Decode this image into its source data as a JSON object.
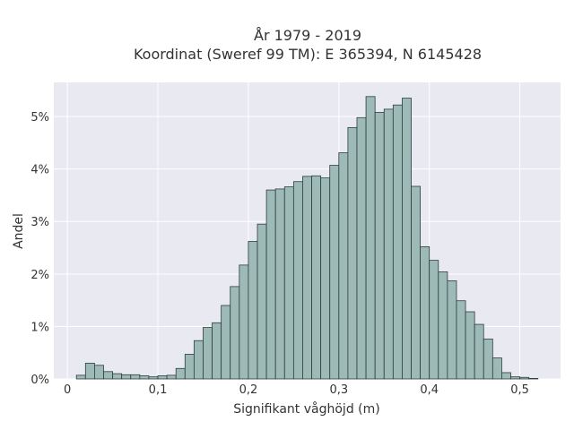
{
  "chart_data": {
    "type": "bar",
    "title": "År 1979 - 2019",
    "subtitle": "Koordinat (Sweref 99 TM): E 365394, N 6145428",
    "xlabel": "Signifikant våghöjd (m)",
    "ylabel": "Andel",
    "xlim": [
      -0.015,
      0.545
    ],
    "ylim": [
      0,
      5.65
    ],
    "x_ticks": [
      {
        "value": 0,
        "label": "0"
      },
      {
        "value": 0.1,
        "label": "0,1"
      },
      {
        "value": 0.2,
        "label": "0,2"
      },
      {
        "value": 0.3,
        "label": "0,3"
      },
      {
        "value": 0.4,
        "label": "0,4"
      },
      {
        "value": 0.5,
        "label": "0,5"
      }
    ],
    "y_ticks": [
      {
        "value": 0,
        "label": "0%"
      },
      {
        "value": 1,
        "label": "1%"
      },
      {
        "value": 2,
        "label": "2%"
      },
      {
        "value": 3,
        "label": "3%"
      },
      {
        "value": 4,
        "label": "4%"
      },
      {
        "value": 5,
        "label": "5%"
      }
    ],
    "grid": true,
    "bin_width": 0.01,
    "bin_starts": [
      0.01,
      0.02,
      0.03,
      0.04,
      0.05,
      0.06,
      0.07,
      0.08,
      0.09,
      0.1,
      0.11,
      0.12,
      0.13,
      0.14,
      0.15,
      0.16,
      0.17,
      0.18,
      0.19,
      0.2,
      0.21,
      0.22,
      0.23,
      0.24,
      0.25,
      0.26,
      0.27,
      0.28,
      0.29,
      0.3,
      0.31,
      0.32,
      0.33,
      0.34,
      0.35,
      0.36,
      0.37,
      0.38,
      0.39,
      0.4,
      0.41,
      0.42,
      0.43,
      0.44,
      0.45,
      0.46,
      0.47,
      0.48,
      0.49,
      0.5,
      0.51
    ],
    "values": [
      0.07,
      0.3,
      0.26,
      0.14,
      0.1,
      0.08,
      0.08,
      0.06,
      0.04,
      0.06,
      0.07,
      0.2,
      0.47,
      0.73,
      0.98,
      1.07,
      1.4,
      1.76,
      2.17,
      2.62,
      2.95,
      3.6,
      3.62,
      3.66,
      3.76,
      3.86,
      3.87,
      3.83,
      4.07,
      4.31,
      4.79,
      4.98,
      5.38,
      5.08,
      5.14,
      5.22,
      5.35,
      3.67,
      2.52,
      2.26,
      2.04,
      1.87,
      1.49,
      1.28,
      1.04,
      0.76,
      0.4,
      0.12,
      0.04,
      0.03,
      0.01
    ],
    "colors": {
      "bar_fill": "#9dbab7",
      "bar_stroke": "#2d3e3c",
      "plot_background": "#e9e9f2",
      "grid": "#ffffff"
    }
  }
}
